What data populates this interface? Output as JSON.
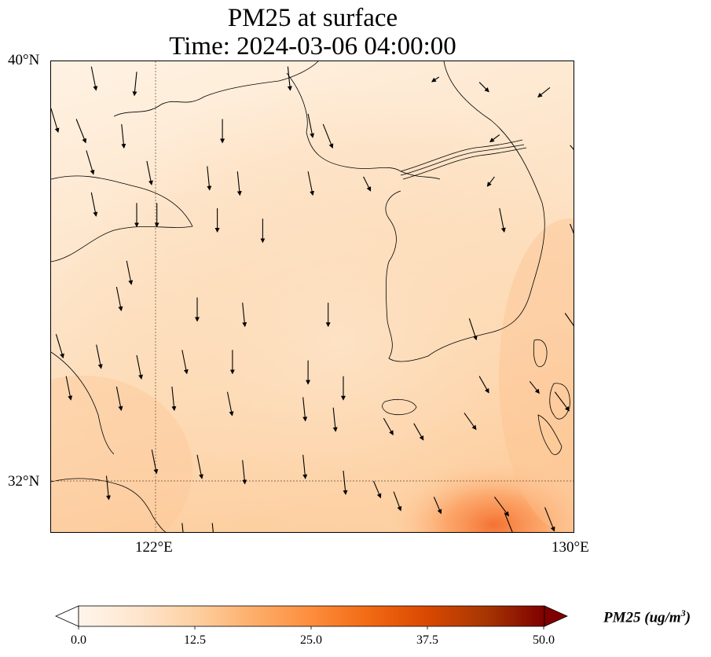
{
  "title": {
    "line1": "PM25 at surface",
    "line2": "Time: 2024-03-06 04:00:00"
  },
  "map": {
    "extent": {
      "lon_min": 119.6,
      "lon_max": 130.0,
      "lat_min": 31.0,
      "lat_max": 40.0
    },
    "gridlines": {
      "lons": [
        122
      ],
      "lats": [
        32
      ]
    },
    "lat_labels": [
      "40°N",
      "32°N"
    ],
    "lon_labels": [
      "122°E",
      "130°E"
    ],
    "field_description_colors": {
      "low": "#fff5eb",
      "mid": "#fdd0a2",
      "high": "#fd8d3c"
    }
  },
  "colorbar": {
    "title": "PM25 (ug/m",
    "title_sup": "3",
    "title_close": ")",
    "ticks": [
      "0.0",
      "12.5",
      "25.0",
      "37.5",
      "50.0"
    ],
    "vmin": 0.0,
    "vmax": 50.0,
    "colors": [
      "#fff5eb",
      "#fee6ce",
      "#fdd0a2",
      "#fdae6b",
      "#fd8d3c",
      "#f16913",
      "#d94801",
      "#a63603",
      "#7f2704"
    ]
  },
  "wind_vectors_note": "",
  "wind_vectors": [
    [
      120.4,
      39.9,
      0.2,
      -1
    ],
    [
      121.3,
      39.8,
      -0.1,
      -1
    ],
    [
      124.3,
      39.9,
      0.1,
      -1
    ],
    [
      127.3,
      39.7,
      -0.3,
      -0.2
    ],
    [
      128.1,
      39.6,
      0.4,
      -0.4
    ],
    [
      129.5,
      39.5,
      -0.5,
      -0.4
    ],
    [
      119.6,
      39.1,
      0.3,
      -1
    ],
    [
      120.1,
      38.9,
      0.4,
      -1
    ],
    [
      121.0,
      38.8,
      0.1,
      -1
    ],
    [
      123.0,
      38.9,
      0.0,
      -1
    ],
    [
      124.7,
      39.0,
      0.2,
      -1
    ],
    [
      125.0,
      38.8,
      0.4,
      -1
    ],
    [
      128.5,
      38.6,
      -0.4,
      -0.3
    ],
    [
      129.9,
      38.4,
      0.6,
      -0.7
    ],
    [
      120.3,
      38.3,
      0.3,
      -1
    ],
    [
      121.5,
      38.1,
      0.2,
      -1
    ],
    [
      122.7,
      38.0,
      0.1,
      -1
    ],
    [
      123.3,
      37.9,
      0.1,
      -1
    ],
    [
      124.7,
      37.9,
      0.2,
      -1
    ],
    [
      125.8,
      37.8,
      0.3,
      -0.6
    ],
    [
      128.4,
      37.8,
      -0.3,
      -0.4
    ],
    [
      120.4,
      37.5,
      0.2,
      -1
    ],
    [
      121.3,
      37.3,
      0.0,
      -1
    ],
    [
      121.7,
      37.3,
      0.0,
      -1
    ],
    [
      122.9,
      37.2,
      0.0,
      -1
    ],
    [
      123.8,
      37.0,
      0.0,
      -1
    ],
    [
      128.5,
      37.2,
      0.2,
      -1
    ],
    [
      129.9,
      36.9,
      0.4,
      -1
    ],
    [
      121.1,
      36.2,
      0.2,
      -1
    ],
    [
      120.9,
      35.7,
      0.2,
      -1
    ],
    [
      122.5,
      35.5,
      0.0,
      -1
    ],
    [
      123.4,
      35.4,
      0.1,
      -1
    ],
    [
      125.1,
      35.4,
      0.0,
      -1
    ],
    [
      127.9,
      35.1,
      0.3,
      -0.9
    ],
    [
      129.8,
      35.2,
      0.7,
      -1
    ],
    [
      119.7,
      34.8,
      0.3,
      -1
    ],
    [
      120.5,
      34.6,
      0.2,
      -1
    ],
    [
      121.3,
      34.4,
      0.2,
      -1
    ],
    [
      122.2,
      34.5,
      0.2,
      -1
    ],
    [
      123.2,
      34.5,
      0.0,
      -1
    ],
    [
      124.7,
      34.3,
      0.0,
      -1
    ],
    [
      125.4,
      34.0,
      0.0,
      -1
    ],
    [
      128.1,
      34.0,
      0.4,
      -0.7
    ],
    [
      129.1,
      33.9,
      0.4,
      -0.5
    ],
    [
      129.6,
      33.7,
      0.6,
      -0.8
    ],
    [
      119.9,
      34.0,
      0.2,
      -1
    ],
    [
      120.9,
      33.8,
      0.2,
      -1
    ],
    [
      122.0,
      33.8,
      0.1,
      -1
    ],
    [
      123.1,
      33.7,
      0.2,
      -1
    ],
    [
      124.6,
      33.6,
      0.1,
      -1
    ],
    [
      125.2,
      33.4,
      0.1,
      -1
    ],
    [
      126.2,
      33.2,
      0.4,
      -0.7
    ],
    [
      126.8,
      33.1,
      0.4,
      -0.7
    ],
    [
      127.8,
      33.3,
      0.5,
      -0.7
    ],
    [
      121.6,
      32.6,
      0.2,
      -1
    ],
    [
      122.5,
      32.5,
      0.2,
      -1
    ],
    [
      123.4,
      32.4,
      0.1,
      -1
    ],
    [
      124.6,
      32.5,
      0.1,
      -1
    ],
    [
      125.4,
      32.2,
      0.1,
      -1
    ],
    [
      126.0,
      32.0,
      0.3,
      -0.7
    ],
    [
      126.4,
      31.8,
      0.3,
      -0.8
    ],
    [
      127.2,
      31.7,
      0.3,
      -0.7
    ],
    [
      128.4,
      31.7,
      0.6,
      -0.8
    ],
    [
      129.4,
      31.5,
      0.4,
      -1
    ],
    [
      128.6,
      31.4,
      0.4,
      -1
    ],
    [
      120.7,
      32.1,
      0.1,
      -1
    ],
    [
      122.2,
      31.2,
      0.1,
      -1
    ],
    [
      122.8,
      31.2,
      0.1,
      -1
    ]
  ]
}
